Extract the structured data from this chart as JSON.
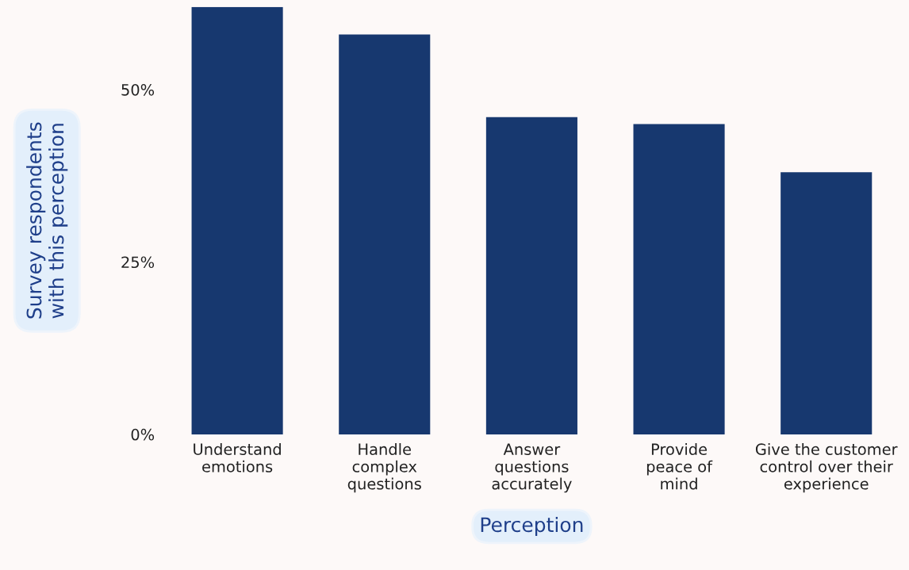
{
  "chart_data": {
    "type": "bar",
    "xlabel": "Perception",
    "ylabel": "Survey respondents\nwith this perception",
    "categories": [
      "Understand\nemotions",
      "Handle\ncomplex\nquestions",
      "Answer\nquestions\naccurately",
      "Provide\npeace of\nmind",
      "Give the customer\ncontrol over their\nexperience"
    ],
    "values": [
      62,
      58,
      46,
      45,
      38
    ],
    "color": "#17386f",
    "ylim": [
      0,
      62
    ],
    "yticks": [
      {
        "value": 0,
        "label": "0%"
      },
      {
        "value": 25,
        "label": "25%"
      },
      {
        "value": 50,
        "label": "50%"
      }
    ],
    "grid": false
  }
}
